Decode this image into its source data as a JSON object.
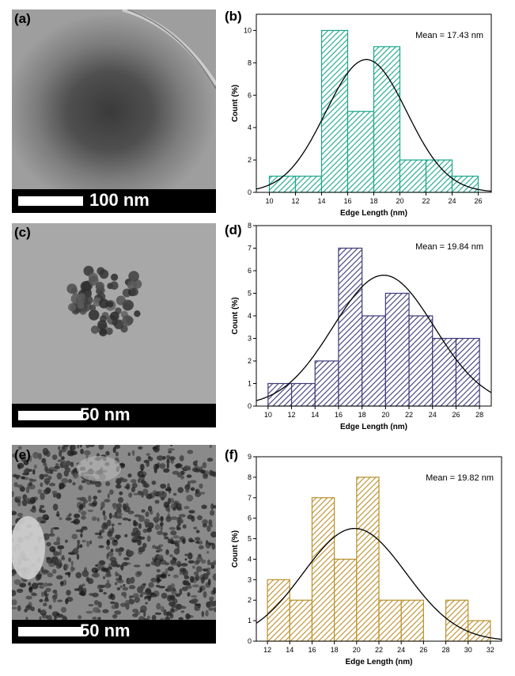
{
  "panels": {
    "a": {
      "label": "(a)",
      "scale_text": "100 nm"
    },
    "c": {
      "label": "(c)",
      "scale_text": "50 nm"
    },
    "e": {
      "label": "(e)",
      "scale_text": "50 nm"
    }
  },
  "chart_data": [
    {
      "id": "b",
      "label": "(b)",
      "type": "bar",
      "xlabel": "Edge Length (nm)",
      "ylabel": "Count (%)",
      "annotation": "Mean = 17.43 nm",
      "color": "#1aa68a",
      "xlim": [
        9,
        27
      ],
      "ylim": [
        0,
        11
      ],
      "xticks": [
        10,
        12,
        14,
        16,
        18,
        20,
        22,
        24,
        26
      ],
      "yticks": [
        0,
        2,
        4,
        6,
        8,
        10
      ],
      "bin_width": 2,
      "bins": [
        10,
        12,
        14,
        16,
        18,
        20,
        22,
        24
      ],
      "values": [
        1,
        1,
        10,
        5,
        9,
        2,
        2,
        1
      ],
      "fit": {
        "type": "gaussian",
        "mean": 17.43,
        "sigma": 3.1,
        "peak": 8.2
      }
    },
    {
      "id": "d",
      "label": "(d)",
      "type": "bar",
      "xlabel": "Edge Length (nm)",
      "ylabel": "Count (%)",
      "annotation": "Mean = 19.84 nm",
      "color": "#3d3a78",
      "xlim": [
        9,
        29
      ],
      "ylim": [
        0,
        8
      ],
      "xticks": [
        10,
        12,
        14,
        16,
        18,
        20,
        22,
        24,
        26,
        28
      ],
      "yticks": [
        0,
        1,
        2,
        3,
        4,
        5,
        6,
        7,
        8
      ],
      "bin_width": 2,
      "bins": [
        10,
        12,
        14,
        16,
        18,
        20,
        22,
        24,
        26
      ],
      "values": [
        1,
        1,
        2,
        7,
        4,
        5,
        4,
        3,
        3
      ],
      "fit": {
        "type": "gaussian",
        "mean": 19.84,
        "sigma": 4.3,
        "peak": 5.8
      }
    },
    {
      "id": "f",
      "label": "(f)",
      "type": "bar",
      "xlabel": "Edge Length (nm)",
      "ylabel": "Count (%)",
      "annotation": "Mean = 19.82 nm",
      "color": "#b98f2a",
      "xlim": [
        11,
        33
      ],
      "ylim": [
        0,
        9
      ],
      "xticks": [
        12,
        14,
        16,
        18,
        20,
        22,
        24,
        26,
        28,
        30,
        32
      ],
      "yticks": [
        0,
        1,
        2,
        3,
        4,
        5,
        6,
        7,
        8,
        9
      ],
      "bin_width": 2,
      "bins": [
        12,
        14,
        16,
        18,
        20,
        22,
        24,
        26,
        28,
        30
      ],
      "values": [
        3,
        2,
        7,
        4,
        8,
        2,
        2,
        0,
        2,
        1
      ],
      "fit": {
        "type": "gaussian",
        "mean": 19.82,
        "sigma": 4.6,
        "peak": 5.5
      }
    }
  ]
}
